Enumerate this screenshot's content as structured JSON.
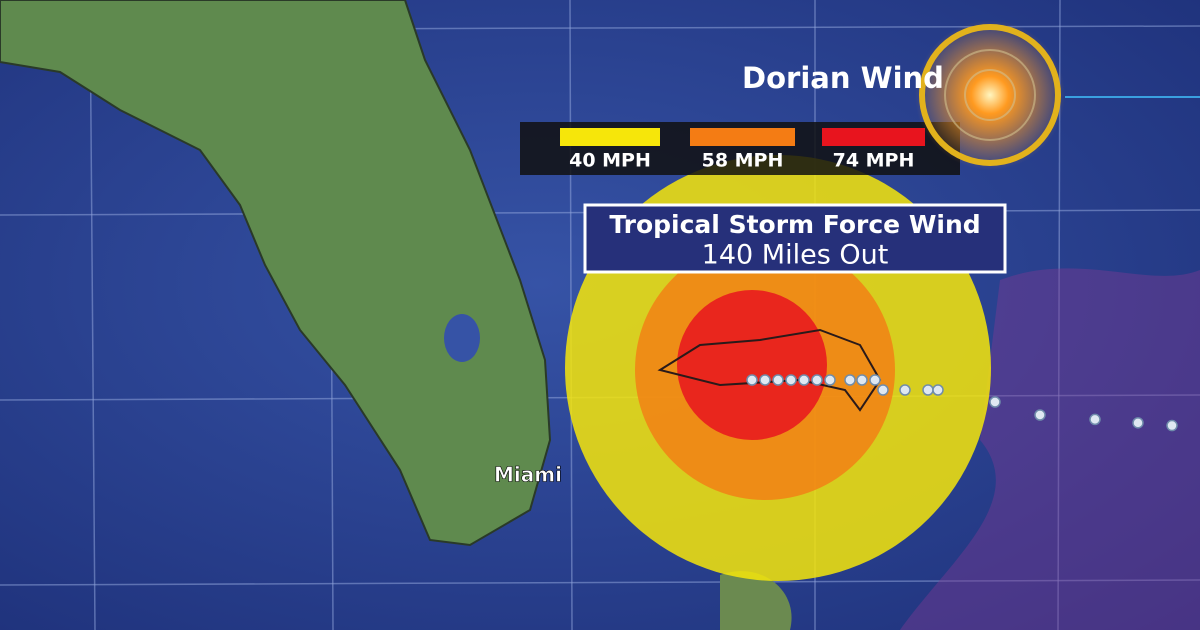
{
  "title": "Dorian Wind",
  "legend": [
    {
      "label": "40 MPH",
      "color": "#f6e60a"
    },
    {
      "label": "58 MPH",
      "color": "#f47c14"
    },
    {
      "label": "74 MPH",
      "color": "#e8141e"
    }
  ],
  "callout": {
    "line1": "Tropical Storm Force Wind",
    "line2": "140 Miles Out"
  },
  "city": "Miami"
}
